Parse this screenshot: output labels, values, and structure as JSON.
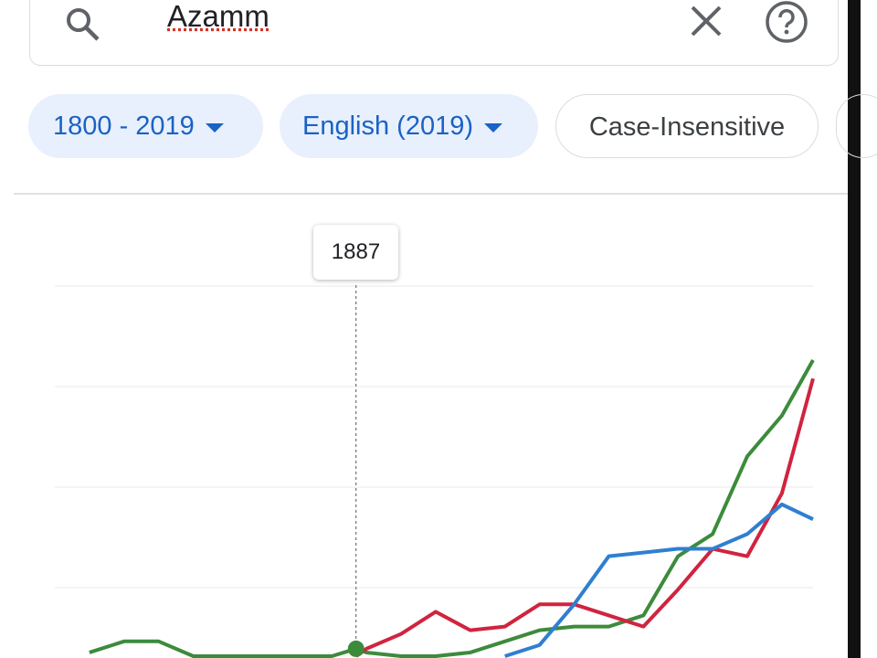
{
  "search": {
    "query": "Azamm"
  },
  "chips": [
    "1800 - 2019",
    "English (2019)",
    "Case-Insensitive"
  ],
  "tooltip": "1887",
  "chart_data": {
    "type": "line",
    "x": [
      1810,
      1820,
      1830,
      1840,
      1850,
      1860,
      1870,
      1880,
      1887,
      1890,
      1900,
      1910,
      1920,
      1930,
      1940,
      1950,
      1960,
      1970,
      1980,
      1990,
      2000,
      2010,
      2019
    ],
    "xlim": [
      1800,
      2019
    ],
    "ylim": [
      0,
      100
    ],
    "series": [
      {
        "color": "#3c8b3c",
        "values": [
          1,
          4,
          4,
          0,
          0,
          0,
          0,
          0,
          2,
          1,
          0,
          0,
          1,
          4,
          7,
          8,
          8,
          11,
          27,
          33,
          54,
          65,
          80
        ]
      },
      {
        "color": "#d0243f",
        "values": [
          null,
          null,
          null,
          null,
          null,
          null,
          null,
          null,
          0,
          2,
          6,
          12,
          7,
          8,
          14,
          14,
          11,
          8,
          18,
          29,
          27,
          44,
          75
        ]
      },
      {
        "color": "#2f7fd1",
        "values": [
          null,
          null,
          null,
          null,
          null,
          null,
          null,
          null,
          null,
          null,
          null,
          null,
          null,
          0,
          3,
          14,
          27,
          28,
          29,
          29,
          33,
          41,
          37
        ]
      }
    ]
  }
}
